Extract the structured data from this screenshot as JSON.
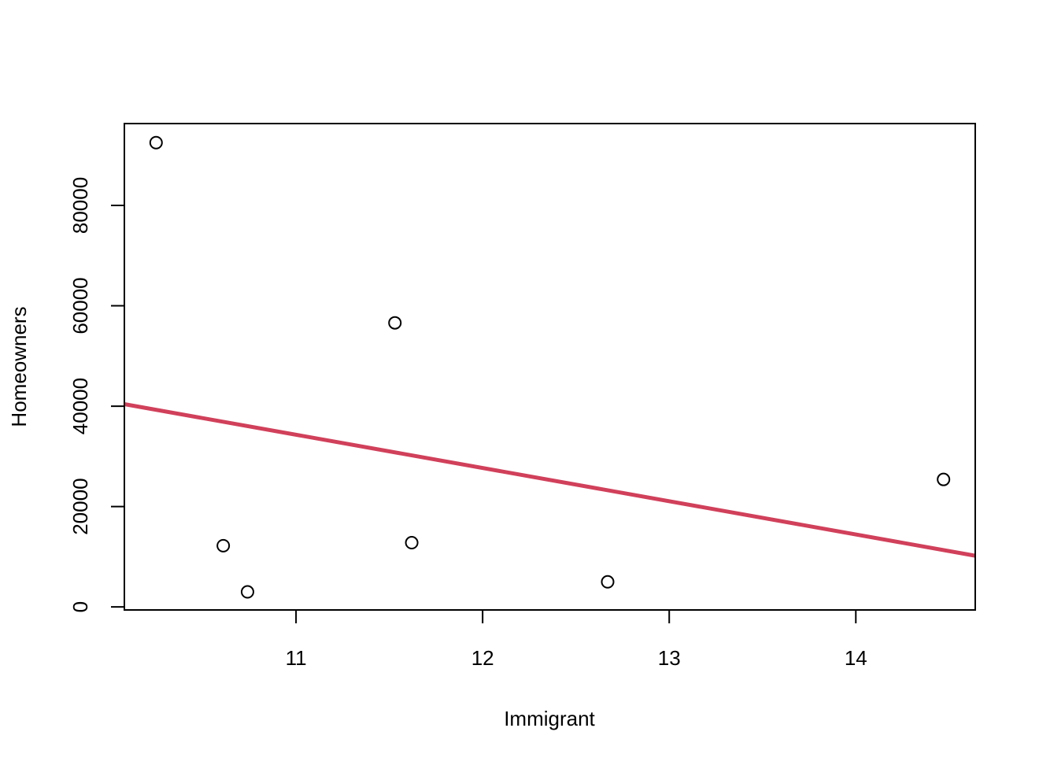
{
  "chart_data": {
    "type": "scatter",
    "title": "",
    "xlabel": "Immigrant",
    "ylabel": "Homeowners",
    "xlim": [
      10.08,
      14.64
    ],
    "ylim": [
      -600,
      96300
    ],
    "xticks": [
      11,
      12,
      13,
      14
    ],
    "xtick_labels": [
      "11",
      "12",
      "13",
      "14"
    ],
    "yticks": [
      0,
      20000,
      40000,
      60000,
      80000
    ],
    "ytick_labels": [
      "0",
      "20000",
      "40000",
      "60000",
      "80000"
    ],
    "points": [
      {
        "x": 10.25,
        "y": 92500
      },
      {
        "x": 10.61,
        "y": 12200
      },
      {
        "x": 10.74,
        "y": 3000
      },
      {
        "x": 11.53,
        "y": 56600
      },
      {
        "x": 11.62,
        "y": 12800
      },
      {
        "x": 12.67,
        "y": 5000
      },
      {
        "x": 14.47,
        "y": 25400
      }
    ],
    "regression_line": {
      "x": [
        10.08,
        14.64
      ],
      "y": [
        40400,
        10200
      ],
      "color": "#d1405a"
    },
    "point_color": "#000000",
    "grid": false,
    "legend": "none"
  }
}
